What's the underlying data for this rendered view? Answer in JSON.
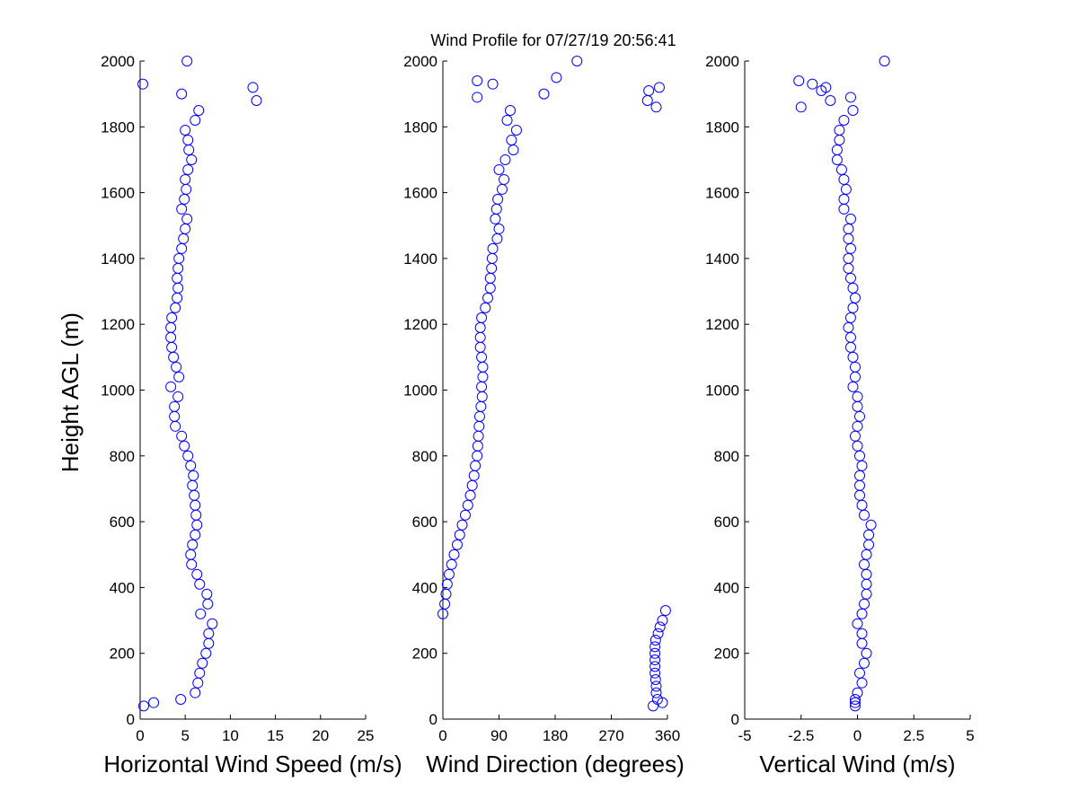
{
  "title": "Wind Profile for  07/27/19 20:56:41",
  "ylabel": "Height AGL (m)",
  "marker_color": "#0000ff",
  "chart_data": [
    {
      "type": "scatter",
      "xlabel": "Horizontal Wind Speed (m/s)",
      "ylabel": "Height AGL (m)",
      "xlim": [
        0,
        25
      ],
      "ylim": [
        0,
        2000
      ],
      "xticks": [
        "0",
        "5",
        "10",
        "15",
        "20",
        "25"
      ],
      "xtick_values": [
        0,
        5,
        10,
        15,
        20,
        25
      ],
      "yticks": [
        "0",
        "200",
        "400",
        "600",
        "800",
        "1000",
        "1200",
        "1400",
        "1600",
        "1800",
        "2000"
      ],
      "yvals": [
        2000,
        1930,
        1920,
        1900,
        1880,
        1850,
        1820,
        1790,
        1760,
        1730,
        1700,
        1670,
        1640,
        1610,
        1580,
        1550,
        1520,
        1490,
        1460,
        1430,
        1400,
        1370,
        1340,
        1310,
        1280,
        1250,
        1220,
        1190,
        1160,
        1130,
        1100,
        1070,
        1040,
        1010,
        980,
        950,
        920,
        890,
        860,
        830,
        800,
        770,
        740,
        710,
        680,
        650,
        620,
        590,
        560,
        530,
        500,
        470,
        440,
        410,
        380,
        350,
        320,
        290,
        260,
        230,
        200,
        170,
        140,
        110,
        80,
        60,
        50,
        40
      ],
      "x": [
        5.2,
        0.3,
        12.5,
        4.6,
        12.9,
        6.5,
        6.1,
        5.0,
        5.3,
        5.4,
        5.7,
        5.3,
        5.0,
        5.1,
        4.9,
        4.6,
        5.2,
        5.0,
        4.8,
        4.6,
        4.3,
        4.2,
        4.1,
        4.2,
        4.1,
        3.9,
        3.5,
        3.4,
        3.4,
        3.5,
        3.7,
        4.0,
        4.3,
        3.4,
        4.2,
        3.8,
        3.8,
        3.9,
        4.6,
        4.9,
        5.3,
        5.6,
        5.9,
        5.8,
        6.0,
        6.1,
        6.2,
        6.3,
        6.1,
        5.8,
        5.6,
        5.7,
        6.3,
        6.6,
        7.4,
        7.5,
        6.7,
        8.0,
        7.6,
        7.6,
        7.3,
        6.9,
        6.6,
        6.4,
        6.1,
        4.5,
        1.5,
        0.4
      ]
    },
    {
      "type": "scatter",
      "xlabel": "Wind Direction (degrees)",
      "ylabel": "Height AGL (m)",
      "xlim": [
        0,
        360
      ],
      "ylim": [
        0,
        2000
      ],
      "xticks": [
        "0",
        "90",
        "180",
        "270",
        "360"
      ],
      "xtick_values": [
        0,
        90,
        180,
        270,
        360
      ],
      "yticks": [
        "0",
        "200",
        "400",
        "600",
        "800",
        "1000",
        "1200",
        "1400",
        "1600",
        "1800",
        "2000"
      ],
      "yvals": [
        2000,
        1950,
        1940,
        1930,
        1920,
        1910,
        1900,
        1890,
        1880,
        1860,
        1850,
        1820,
        1790,
        1760,
        1730,
        1700,
        1670,
        1640,
        1610,
        1580,
        1550,
        1520,
        1490,
        1460,
        1430,
        1400,
        1370,
        1340,
        1310,
        1280,
        1250,
        1220,
        1190,
        1160,
        1130,
        1100,
        1070,
        1040,
        1010,
        980,
        950,
        920,
        890,
        860,
        830,
        800,
        770,
        740,
        710,
        680,
        650,
        620,
        590,
        560,
        530,
        500,
        470,
        440,
        410,
        380,
        350,
        330,
        320,
        300,
        280,
        260,
        240,
        220,
        200,
        180,
        160,
        140,
        120,
        100,
        80,
        60,
        50,
        40
      ],
      "x": [
        215,
        182,
        55,
        80,
        347,
        330,
        162,
        55,
        328,
        342,
        108,
        103,
        118,
        110,
        113,
        100,
        90,
        98,
        95,
        88,
        86,
        84,
        90,
        87,
        80,
        79,
        78,
        76,
        76,
        72,
        68,
        62,
        60,
        60,
        60,
        62,
        64,
        64,
        62,
        63,
        61,
        59,
        58,
        57,
        56,
        55,
        52,
        50,
        47,
        44,
        40,
        36,
        31,
        27,
        23,
        18,
        14,
        10,
        7,
        5,
        3,
        357,
        0,
        352,
        348,
        345,
        341,
        340,
        340,
        340,
        340,
        340,
        341,
        342,
        342,
        344,
        352,
        337
      ]
    },
    {
      "type": "scatter",
      "xlabel": "Vertical Wind (m/s)",
      "ylabel": "Height AGL (m)",
      "xlim": [
        -5,
        5
      ],
      "ylim": [
        0,
        2000
      ],
      "xticks": [
        "-5",
        "-2.5",
        "0",
        "2.5",
        "5"
      ],
      "xtick_values": [
        -5,
        -2.5,
        0,
        2.5,
        5
      ],
      "yticks": [
        "0",
        "200",
        "400",
        "600",
        "800",
        "1000",
        "1200",
        "1400",
        "1600",
        "1800",
        "2000"
      ],
      "yvals": [
        2000,
        1940,
        1930,
        1920,
        1910,
        1890,
        1880,
        1860,
        1850,
        1820,
        1790,
        1760,
        1730,
        1700,
        1670,
        1640,
        1610,
        1580,
        1550,
        1520,
        1490,
        1460,
        1430,
        1400,
        1370,
        1340,
        1310,
        1280,
        1250,
        1220,
        1190,
        1160,
        1130,
        1100,
        1070,
        1040,
        1010,
        980,
        950,
        920,
        890,
        860,
        830,
        800,
        770,
        740,
        710,
        680,
        650,
        620,
        590,
        560,
        530,
        500,
        470,
        440,
        410,
        380,
        350,
        320,
        290,
        260,
        230,
        200,
        170,
        140,
        110,
        80,
        60,
        50,
        40
      ],
      "x": [
        1.2,
        -2.6,
        -2.0,
        -1.4,
        -1.6,
        -0.3,
        -1.2,
        -2.5,
        -0.2,
        -0.6,
        -0.8,
        -0.8,
        -0.9,
        -0.9,
        -0.7,
        -0.6,
        -0.5,
        -0.6,
        -0.6,
        -0.3,
        -0.4,
        -0.4,
        -0.3,
        -0.4,
        -0.4,
        -0.3,
        -0.2,
        -0.1,
        -0.2,
        -0.3,
        -0.4,
        -0.3,
        -0.3,
        -0.2,
        -0.1,
        -0.1,
        -0.2,
        0.0,
        0.0,
        0.1,
        0.0,
        -0.1,
        0.0,
        0.1,
        0.2,
        0.1,
        0.1,
        0.1,
        0.2,
        0.3,
        0.6,
        0.5,
        0.5,
        0.4,
        0.3,
        0.4,
        0.4,
        0.4,
        0.3,
        0.2,
        0.0,
        0.2,
        0.2,
        0.4,
        0.3,
        0.1,
        0.2,
        0.0,
        -0.1,
        -0.1,
        -0.1
      ]
    }
  ]
}
